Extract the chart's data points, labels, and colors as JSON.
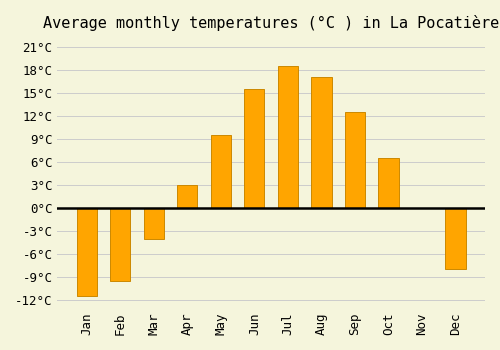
{
  "title": "Average monthly temperatures (°C ) in La Pocatière",
  "months": [
    "Jan",
    "Feb",
    "Mar",
    "Apr",
    "May",
    "Jun",
    "Jul",
    "Aug",
    "Sep",
    "Oct",
    "Nov",
    "Dec"
  ],
  "values": [
    -11.5,
    -9.5,
    -4.0,
    3.0,
    9.5,
    15.5,
    18.5,
    17.0,
    12.5,
    6.5,
    0.0,
    -8.0
  ],
  "bar_color_positive": "#FFA500",
  "bar_color_negative": "#FFA500",
  "bar_edge_color": "#CC8800",
  "background_color": "#F5F5DC",
  "grid_color": "#CCCCCC",
  "ylim": [
    -13,
    22
  ],
  "yticks": [
    -12,
    -9,
    -6,
    -3,
    0,
    3,
    6,
    9,
    12,
    15,
    18,
    21
  ],
  "ytick_labels": [
    "-12°C",
    "-9°C",
    "-6°C",
    "-3°C",
    "0°C",
    "3°C",
    "6°C",
    "9°C",
    "12°C",
    "15°C",
    "18°C",
    "21°C"
  ],
  "title_fontsize": 11,
  "tick_fontsize": 9,
  "font_family": "monospace"
}
